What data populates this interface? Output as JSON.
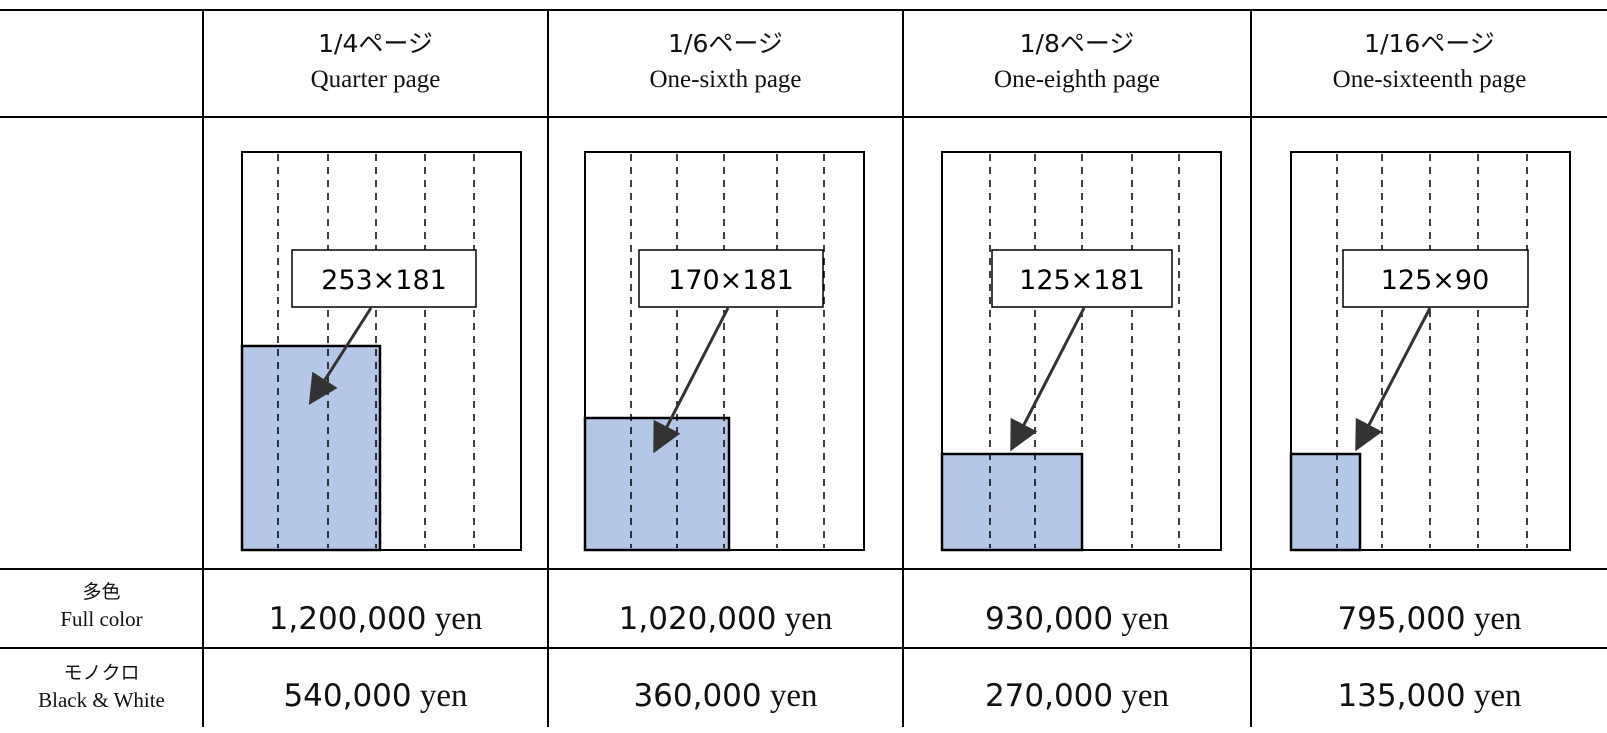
{
  "columns": [
    {
      "jp": "1/4ページ",
      "en": "Quarter page",
      "size": "253×181",
      "full_color": "1,200,000",
      "bw": "540,000"
    },
    {
      "jp": "1/6ページ",
      "en": "One-sixth page",
      "size": "170×181",
      "full_color": "1,020,000",
      "bw": "360,000"
    },
    {
      "jp": "1/8ページ",
      "en": "One-eighth page",
      "size": "125×181",
      "full_color": "930,000",
      "bw": "270,000"
    },
    {
      "jp": "1/16ページ",
      "en": "One-sixteenth page",
      "size": "125×90",
      "full_color": "795,000",
      "bw": "135,000"
    }
  ],
  "currency_unit": "yen",
  "rows": {
    "full_color": {
      "jp": "多色",
      "en": "Full color"
    },
    "bw": {
      "jp": "モノクロ",
      "en": "Black & White"
    }
  },
  "colors": {
    "ad_area": "#b4c7e7",
    "border": "#000000"
  }
}
